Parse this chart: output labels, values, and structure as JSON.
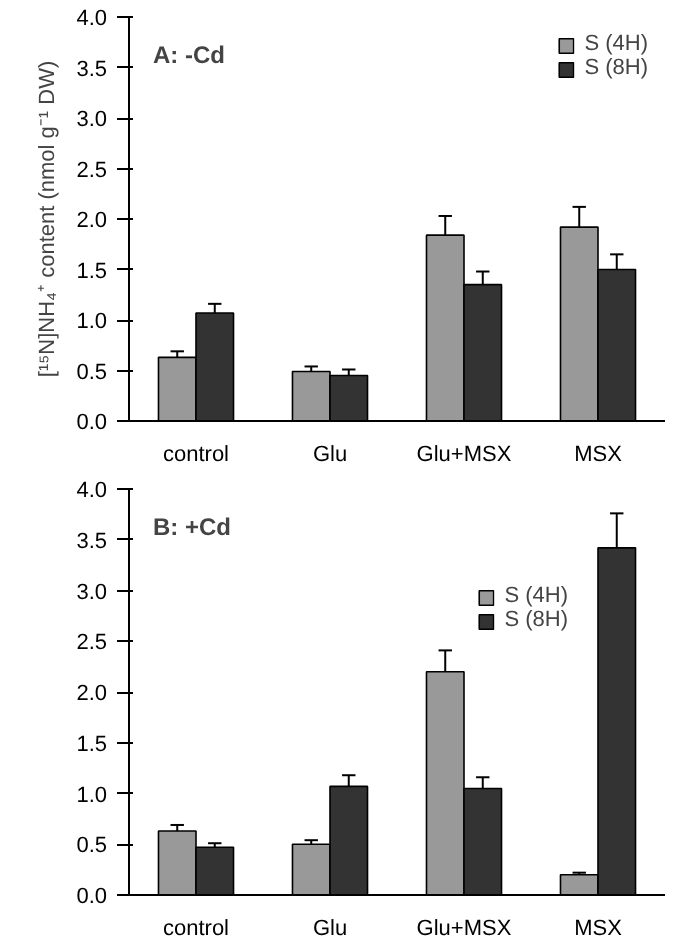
{
  "chart_data": [
    {
      "type": "bar",
      "title": "A: -Cd",
      "ylabel": "[¹⁵N]NH₄⁺ content (nmol g⁻¹ DW)",
      "categories": [
        "control",
        "Glu",
        "Glu+MSX",
        "MSX"
      ],
      "series": [
        {
          "name": "S (4H)",
          "color": "#999999",
          "values": [
            0.63,
            0.49,
            1.84,
            1.92
          ],
          "errors": [
            [
              0.63,
              0.69
            ],
            [
              0.49,
              0.54
            ],
            [
              1.84,
              2.03
            ],
            [
              1.92,
              2.12
            ]
          ]
        },
        {
          "name": "S (8H)",
          "color": "#333333",
          "values": [
            1.07,
            0.45,
            1.35,
            1.5
          ],
          "errors": [
            [
              1.07,
              1.16
            ],
            [
              0.45,
              0.51
            ],
            [
              1.35,
              1.48
            ],
            [
              1.5,
              1.65
            ]
          ]
        }
      ],
      "ylim": [
        0,
        4
      ],
      "yticks": [
        {
          "value": 0,
          "label": "0.0"
        },
        {
          "value": 0.5,
          "label": "0.5"
        },
        {
          "value": 1,
          "label": "1.0"
        },
        {
          "value": 1.5,
          "label": "1.5"
        },
        {
          "value": 2,
          "label": "2.0"
        },
        {
          "value": 2.5,
          "label": "2.5"
        },
        {
          "value": 3,
          "label": "3.0"
        },
        {
          "value": 3.5,
          "label": "3.5"
        },
        {
          "value": 4,
          "label": "4.0"
        }
      ],
      "grid": false,
      "legend": "top right"
    },
    {
      "type": "bar",
      "title": "B: +Cd",
      "categories": [
        "control",
        "Glu",
        "Glu+MSX",
        "MSX"
      ],
      "series": [
        {
          "name": "S (4H)",
          "color": "#999999",
          "values": [
            0.63,
            0.5,
            2.2,
            0.2
          ],
          "errors": [
            [
              0.63,
              0.69
            ],
            [
              0.5,
              0.54
            ],
            [
              2.2,
              2.41
            ],
            [
              0.2,
              0.22
            ]
          ]
        },
        {
          "name": "S (8H)",
          "color": "#333333",
          "values": [
            0.47,
            1.07,
            1.05,
            3.42
          ],
          "errors": [
            [
              0.47,
              0.51
            ],
            [
              1.07,
              1.18
            ],
            [
              1.05,
              1.16
            ],
            [
              3.42,
              3.76
            ]
          ]
        }
      ],
      "ylim": [
        0,
        4
      ],
      "yticks": [
        {
          "value": 0,
          "label": "0.0"
        },
        {
          "value": 0.5,
          "label": "0.5"
        },
        {
          "value": 1,
          "label": "1.0"
        },
        {
          "value": 1.5,
          "label": "1.5"
        },
        {
          "value": 2,
          "label": "2.0"
        },
        {
          "value": 2.5,
          "label": "2.5"
        },
        {
          "value": 3,
          "label": "3.0"
        },
        {
          "value": 3.5,
          "label": "3.5"
        },
        {
          "value": 4,
          "label": "4.0"
        }
      ],
      "grid": false,
      "legend": "top right"
    }
  ]
}
